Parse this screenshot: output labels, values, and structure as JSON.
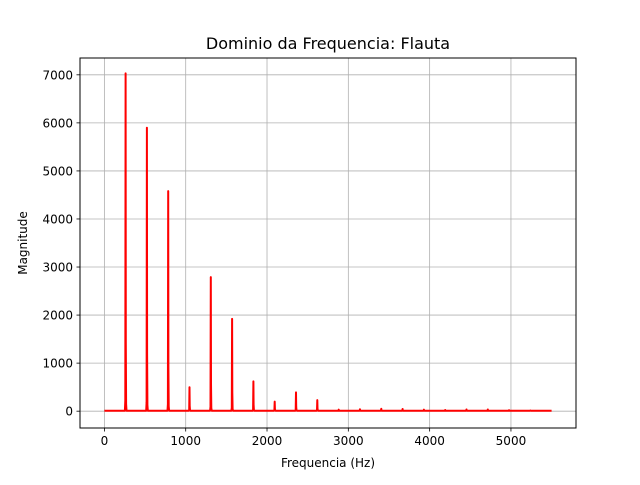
{
  "chart_data": {
    "type": "line",
    "title": "Dominio da Frequencia: Flauta",
    "xlabel": "Frequencia (Hz)",
    "ylabel": "Magnitude",
    "xlim": [
      -300,
      5800
    ],
    "ylim": [
      -350,
      7350
    ],
    "grid": true,
    "color": "#ff0000",
    "x_ticks": [
      0,
      1000,
      2000,
      3000,
      4000,
      5000
    ],
    "y_ticks": [
      0,
      1000,
      2000,
      3000,
      4000,
      5000,
      6000,
      7000
    ],
    "x_range": [
      0,
      5500
    ],
    "baseline": 10,
    "peaks": [
      {
        "x": 262,
        "y": 7030
      },
      {
        "x": 524,
        "y": 5900
      },
      {
        "x": 786,
        "y": 4580
      },
      {
        "x": 1048,
        "y": 500
      },
      {
        "x": 1310,
        "y": 2790
      },
      {
        "x": 1572,
        "y": 1920
      },
      {
        "x": 1834,
        "y": 620
      },
      {
        "x": 2096,
        "y": 200
      },
      {
        "x": 2358,
        "y": 390
      },
      {
        "x": 2620,
        "y": 230
      },
      {
        "x": 2882,
        "y": 30
      },
      {
        "x": 3144,
        "y": 40
      },
      {
        "x": 3406,
        "y": 50
      },
      {
        "x": 3668,
        "y": 45
      },
      {
        "x": 3930,
        "y": 30
      },
      {
        "x": 4192,
        "y": 25
      },
      {
        "x": 4454,
        "y": 35
      },
      {
        "x": 4716,
        "y": 35
      },
      {
        "x": 4978,
        "y": 20
      },
      {
        "x": 5240,
        "y": 15
      }
    ]
  }
}
